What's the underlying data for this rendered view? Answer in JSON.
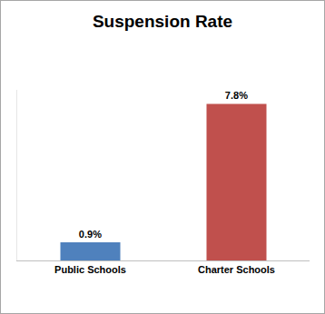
{
  "chart_data": {
    "type": "bar",
    "title": "Suspension Rate",
    "categories": [
      "Public Schools",
      "Charter Schools"
    ],
    "values": [
      0.9,
      7.8
    ],
    "value_labels": [
      "0.9%",
      "7.8%"
    ],
    "colors": [
      "#4f81bd",
      "#c0504d"
    ],
    "ylim": [
      0,
      8.5
    ],
    "yticks": [],
    "grid": false,
    "data_labels": true,
    "tick_labels": "x"
  }
}
